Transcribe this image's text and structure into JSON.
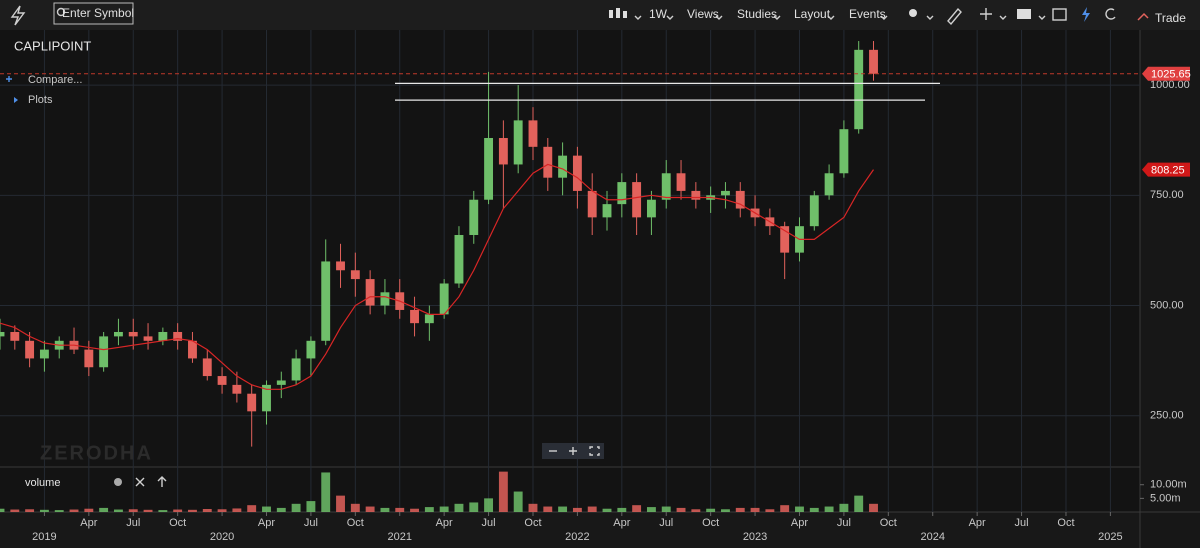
{
  "toolbar": {
    "search_placeholder": "Enter Symbol",
    "menus": [
      "1W",
      "Views",
      "Studies",
      "Layout",
      "Events"
    ],
    "trade": "Trade"
  },
  "controls": [
    "Compare...",
    "Plots"
  ],
  "watermark": "ZERODHA",
  "chart_data": {
    "type": "candlestick",
    "title": "CAPLIPOINT",
    "x": [
      "2018-10",
      "2018-11",
      "2018-12",
      "2019-01",
      "2019-02",
      "2019-03",
      "2019-04",
      "2019-05",
      "2019-06",
      "2019-07",
      "2019-08",
      "2019-09",
      "2019-10",
      "2019-11",
      "2019-12",
      "2020-01",
      "2020-02",
      "2020-03",
      "2020-04",
      "2020-05",
      "2020-06",
      "2020-07",
      "2020-08",
      "2020-09",
      "2020-10",
      "2020-11",
      "2020-12",
      "2021-01",
      "2021-02",
      "2021-03",
      "2021-04",
      "2021-05",
      "2021-06",
      "2021-07",
      "2021-08",
      "2021-09",
      "2021-10",
      "2021-11",
      "2021-12",
      "2022-01",
      "2022-02",
      "2022-03",
      "2022-04",
      "2022-05",
      "2022-06",
      "2022-07",
      "2022-08",
      "2022-09",
      "2022-10",
      "2022-11",
      "2022-12",
      "2023-01",
      "2023-02",
      "2023-03",
      "2023-04",
      "2023-05",
      "2023-06",
      "2023-07",
      "2023-08",
      "2023-09"
    ],
    "open": [
      430,
      440,
      420,
      380,
      400,
      420,
      400,
      360,
      430,
      440,
      430,
      420,
      440,
      420,
      380,
      340,
      320,
      300,
      260,
      320,
      330,
      380,
      420,
      600,
      580,
      560,
      500,
      530,
      490,
      460,
      480,
      550,
      660,
      740,
      880,
      820,
      920,
      860,
      790,
      840,
      760,
      700,
      730,
      780,
      700,
      740,
      800,
      760,
      740,
      750,
      760,
      720,
      700,
      680,
      620,
      680,
      750,
      800,
      900,
      1080
    ],
    "high": [
      470,
      455,
      440,
      420,
      430,
      450,
      420,
      440,
      470,
      470,
      460,
      450,
      460,
      440,
      400,
      360,
      350,
      320,
      330,
      350,
      400,
      430,
      650,
      640,
      620,
      580,
      560,
      560,
      520,
      500,
      560,
      680,
      760,
      1030,
      920,
      1000,
      950,
      880,
      870,
      860,
      800,
      760,
      800,
      800,
      760,
      830,
      830,
      780,
      770,
      780,
      780,
      750,
      720,
      690,
      700,
      760,
      820,
      920,
      1100,
      1100
    ],
    "low": [
      400,
      400,
      360,
      350,
      380,
      390,
      340,
      350,
      410,
      400,
      400,
      410,
      400,
      370,
      330,
      300,
      280,
      180,
      230,
      290,
      320,
      340,
      410,
      540,
      520,
      480,
      480,
      470,
      430,
      420,
      470,
      540,
      640,
      730,
      720,
      800,
      830,
      760,
      750,
      720,
      660,
      670,
      700,
      660,
      660,
      720,
      740,
      720,
      710,
      720,
      700,
      680,
      660,
      560,
      600,
      670,
      740,
      790,
      890,
      1010
    ],
    "close": [
      440,
      420,
      380,
      400,
      420,
      400,
      360,
      430,
      440,
      430,
      420,
      440,
      420,
      380,
      340,
      320,
      300,
      260,
      320,
      330,
      380,
      420,
      600,
      580,
      560,
      500,
      530,
      490,
      460,
      480,
      550,
      660,
      740,
      880,
      820,
      920,
      860,
      790,
      840,
      760,
      700,
      730,
      780,
      700,
      740,
      800,
      760,
      740,
      750,
      760,
      720,
      700,
      680,
      620,
      680,
      750,
      800,
      900,
      1080,
      1025.65
    ],
    "ma": [
      460,
      450,
      430,
      415,
      410,
      410,
      405,
      400,
      405,
      410,
      415,
      420,
      425,
      420,
      400,
      370,
      340,
      320,
      310,
      310,
      320,
      340,
      390,
      450,
      500,
      520,
      520,
      510,
      495,
      480,
      480,
      520,
      580,
      650,
      720,
      760,
      800,
      820,
      810,
      790,
      760,
      740,
      740,
      745,
      750,
      745,
      745,
      745,
      745,
      740,
      730,
      710,
      690,
      670,
      650,
      650,
      675,
      700,
      760,
      808.25
    ],
    "up_color": "#6fbf6a",
    "down_color": "#e2625c",
    "ma_color": "#d92626",
    "levels": [
      1004,
      966
    ],
    "ylim": [
      136,
      1125
    ],
    "yticks": [
      {
        "value": 250,
        "label": "250.00"
      },
      {
        "value": 500,
        "label": "500.00"
      },
      {
        "value": 750,
        "label": "750.00"
      },
      {
        "value": 1000,
        "label": "1000.00"
      }
    ],
    "xlim": [
      "2018-10",
      "2025-03"
    ],
    "xticks": [
      {
        "value": "2019-01",
        "label": "2019"
      },
      {
        "value": "2019-04",
        "label": "Apr"
      },
      {
        "value": "2019-07",
        "label": "Jul"
      },
      {
        "value": "2019-10",
        "label": "Oct"
      },
      {
        "value": "2020-01",
        "label": "2020"
      },
      {
        "value": "2020-04",
        "label": "Apr"
      },
      {
        "value": "2020-07",
        "label": "Jul"
      },
      {
        "value": "2020-10",
        "label": "Oct"
      },
      {
        "value": "2021-01",
        "label": "2021"
      },
      {
        "value": "2021-04",
        "label": "Apr"
      },
      {
        "value": "2021-07",
        "label": "Jul"
      },
      {
        "value": "2021-10",
        "label": "Oct"
      },
      {
        "value": "2022-01",
        "label": "2022"
      },
      {
        "value": "2022-04",
        "label": "Apr"
      },
      {
        "value": "2022-07",
        "label": "Jul"
      },
      {
        "value": "2022-10",
        "label": "Oct"
      },
      {
        "value": "2023-01",
        "label": "2023"
      },
      {
        "value": "2023-04",
        "label": "Apr"
      },
      {
        "value": "2023-07",
        "label": "Jul"
      },
      {
        "value": "2023-10",
        "label": "Oct"
      },
      {
        "value": "2024-01",
        "label": "2024"
      },
      {
        "value": "2024-04",
        "label": "Apr"
      },
      {
        "value": "2024-07",
        "label": "Jul"
      },
      {
        "value": "2024-10",
        "label": "Oct"
      },
      {
        "value": "2025-01",
        "label": "2025"
      }
    ],
    "grid": true,
    "volume": {
      "label": "volume",
      "values": [
        1200000,
        900000,
        1000000,
        800000,
        700000,
        900000,
        1200000,
        1500000,
        900000,
        1000000,
        800000,
        700000,
        900000,
        800000,
        1100000,
        1000000,
        1300000,
        2500000,
        2000000,
        1500000,
        3000000,
        4000000,
        14500000,
        6000000,
        3000000,
        2000000,
        1500000,
        1500000,
        1200000,
        1800000,
        2000000,
        3000000,
        3500000,
        5000000,
        14800000,
        7500000,
        3000000,
        2000000,
        2000000,
        1500000,
        2000000,
        1200000,
        1500000,
        2500000,
        1800000,
        2000000,
        1500000,
        1000000,
        1200000,
        1000000,
        1500000,
        1500000,
        1000000,
        2500000,
        2000000,
        1500000,
        2000000,
        3000000,
        6000000,
        3000000
      ],
      "ylim": [
        0,
        15400000
      ],
      "yticks": [
        {
          "value": 5000000,
          "label": "5.00m"
        },
        {
          "value": 10000000,
          "label": "10.00m"
        }
      ]
    }
  }
}
